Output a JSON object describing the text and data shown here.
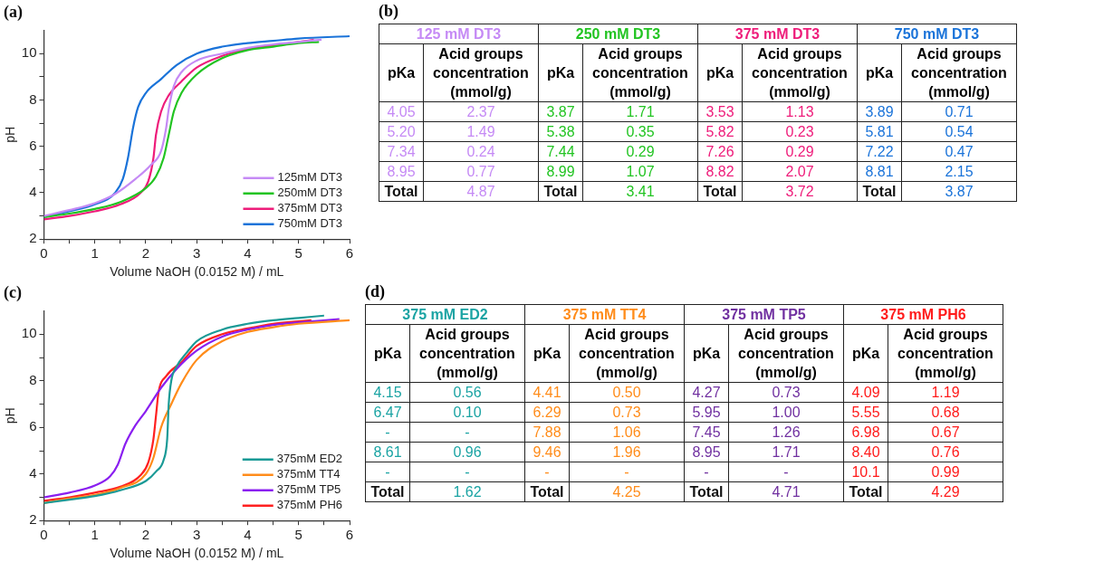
{
  "chart_data": [
    {
      "type": "line",
      "title": "(a)",
      "xlabel": "Volume NaOH (0.0152 M) / mL",
      "ylabel": "pH",
      "xlim": [
        0,
        6
      ],
      "ylim": [
        2,
        11
      ],
      "xticks": [
        0,
        {
          "value": 0.5,
          "label": null
        },
        1,
        {
          "value": 1.5,
          "label": null
        },
        2,
        {
          "value": 2.5,
          "label": null
        },
        3,
        {
          "value": 3.5,
          "label": null
        },
        4,
        {
          "value": 4.5,
          "label": null
        },
        5,
        {
          "value": 5.5,
          "label": null
        },
        6
      ],
      "yticks": [
        2,
        {
          "value": 3,
          "label": null
        },
        4,
        {
          "value": 5,
          "label": null
        },
        6,
        {
          "value": 7,
          "label": null
        },
        8,
        {
          "value": 9,
          "label": null
        },
        10
      ],
      "grid": false,
      "legend": "bottom right",
      "marker": "none",
      "series": [
        {
          "name": "125mM DT3",
          "color": "#c58af5",
          "x": [
            0,
            0.5,
            1,
            1.4,
            1.8,
            2.1,
            2.3,
            2.4,
            2.45,
            2.55,
            2.7,
            3,
            3.5,
            4,
            4.5,
            5,
            5.45
          ],
          "values": [
            3.0,
            3.25,
            3.55,
            3.95,
            4.6,
            5.2,
            5.8,
            6.8,
            7.6,
            8.6,
            9.2,
            9.7,
            10.0,
            10.25,
            10.4,
            10.5,
            10.6
          ]
        },
        {
          "name": "250mM DT3",
          "color": "#22c422",
          "x": [
            0,
            0.5,
            1,
            1.5,
            2,
            2.2,
            2.35,
            2.45,
            2.55,
            2.7,
            3,
            3.5,
            4,
            4.5,
            5,
            5.4
          ],
          "values": [
            2.95,
            3.1,
            3.3,
            3.6,
            4.2,
            4.7,
            5.5,
            6.5,
            7.5,
            8.3,
            9.1,
            9.8,
            10.15,
            10.3,
            10.45,
            10.5
          ]
        },
        {
          "name": "375mM DT3",
          "color": "#ee1c7a",
          "x": [
            0,
            0.5,
            1,
            1.5,
            1.9,
            2.05,
            2.15,
            2.2,
            2.3,
            2.45,
            2.7,
            3,
            3.5,
            4,
            4.5,
            5,
            5.3
          ],
          "values": [
            2.85,
            3.0,
            3.2,
            3.5,
            4.0,
            4.5,
            5.5,
            6.5,
            7.5,
            8.2,
            8.8,
            9.4,
            9.9,
            10.2,
            10.35,
            10.5,
            10.6
          ]
        },
        {
          "name": "750mM DT3",
          "color": "#1a73d9",
          "x": [
            0,
            0.5,
            1,
            1.4,
            1.55,
            1.65,
            1.75,
            1.85,
            2,
            2.3,
            2.6,
            3,
            3.5,
            4,
            4.5,
            5,
            6
          ],
          "values": [
            2.95,
            3.2,
            3.5,
            4.0,
            4.6,
            5.5,
            6.8,
            7.7,
            8.3,
            8.9,
            9.5,
            10.0,
            10.3,
            10.45,
            10.55,
            10.65,
            10.75
          ]
        }
      ]
    },
    {
      "type": "other",
      "title": "(b)",
      "annotations": [
        "125 mM DT3",
        "250 mM DT3",
        "375 mM DT3",
        "750 mM DT3",
        "pKa",
        "Acid groups concentration (mmol/g)",
        "pKa",
        "Acid groups concentration (mmol/g)",
        "pKa",
        "Acid groups concentration (mmol/g)",
        "pKa",
        "Acid groups concentration (mmol/g)",
        "4.05",
        "2.37",
        "3.87",
        "1.71",
        "3.53",
        "1.13",
        "3.89",
        "0.71",
        "5.20",
        "1.49",
        "5.38",
        "0.35",
        "5.82",
        "0.23",
        "5.81",
        "0.54",
        "7.34",
        "0.24",
        "7.44",
        "0.29",
        "7.26",
        "0.29",
        "7.22",
        "0.47",
        "8.95",
        "0.77",
        "8.99",
        "1.07",
        "8.82",
        "2.07",
        "8.81",
        "2.15",
        "Total",
        "4.87",
        "Total",
        "3.41",
        "Total",
        "3.72",
        "Total",
        "3.87"
      ]
    },
    {
      "type": "line",
      "title": "(c)",
      "xlabel": "Volume NaOH (0.0152 M) / mL",
      "ylabel": "pH",
      "xlim": [
        0,
        6
      ],
      "ylim": [
        2,
        11
      ],
      "xticks": [
        0,
        {
          "value": 0.5,
          "label": null
        },
        1,
        {
          "value": 1.5,
          "label": null
        },
        2,
        {
          "value": 2.5,
          "label": null
        },
        3,
        {
          "value": 3.5,
          "label": null
        },
        4,
        {
          "value": 4.5,
          "label": null
        },
        5,
        {
          "value": 5.5,
          "label": null
        },
        6
      ],
      "yticks": [
        2,
        {
          "value": 3,
          "label": null
        },
        4,
        {
          "value": 5,
          "label": null
        },
        6,
        {
          "value": 7,
          "label": null
        },
        8,
        {
          "value": 9,
          "label": null
        },
        10
      ],
      "grid": false,
      "legend": "bottom right",
      "marker": "none",
      "series": [
        {
          "name": "375mM ED2",
          "color": "#1a9a96",
          "x": [
            0,
            0.5,
            1,
            1.5,
            2,
            2.2,
            2.35,
            2.42,
            2.45,
            2.5,
            2.6,
            2.8,
            3,
            3.5,
            4,
            4.5,
            5,
            5.5
          ],
          "values": [
            2.75,
            2.9,
            3.05,
            3.3,
            3.7,
            4.1,
            4.6,
            5.5,
            7.0,
            8.0,
            8.6,
            9.2,
            9.7,
            10.2,
            10.45,
            10.6,
            10.7,
            10.8
          ]
        },
        {
          "name": "375mM TT4",
          "color": "#ff8c1a",
          "x": [
            0,
            0.5,
            1,
            1.5,
            2,
            2.15,
            2.3,
            2.5,
            2.7,
            3,
            3.5,
            4,
            4.5,
            5,
            6
          ],
          "values": [
            2.75,
            2.95,
            3.1,
            3.4,
            4.0,
            4.7,
            6.0,
            7.0,
            7.9,
            8.9,
            9.7,
            10.1,
            10.3,
            10.45,
            10.6
          ]
        },
        {
          "name": "375mM TP5",
          "color": "#8a1ff0",
          "x": [
            0,
            0.5,
            1,
            1.3,
            1.45,
            1.6,
            1.8,
            2,
            2.3,
            2.6,
            3,
            3.5,
            4,
            4.5,
            5,
            5.8
          ],
          "values": [
            3.0,
            3.2,
            3.5,
            3.9,
            4.4,
            5.3,
            6.1,
            6.7,
            7.7,
            8.5,
            9.3,
            9.9,
            10.2,
            10.4,
            10.5,
            10.65
          ]
        },
        {
          "name": "375mM PH6",
          "color": "#ff2020",
          "x": [
            0,
            0.5,
            1,
            1.5,
            1.9,
            2.05,
            2.15,
            2.2,
            2.25,
            2.4,
            2.7,
            3,
            3.5,
            4,
            4.5,
            5,
            5.25
          ],
          "values": [
            2.85,
            3.0,
            3.2,
            3.45,
            3.95,
            4.5,
            5.5,
            6.5,
            7.5,
            8.2,
            8.8,
            9.5,
            10.0,
            10.25,
            10.45,
            10.55,
            10.6
          ]
        }
      ]
    },
    {
      "type": "other",
      "title": "(d)",
      "annotations": [
        "375 mM ED2",
        "375 mM TT4",
        "375 mM TP5",
        "375 mM PH6",
        "pKa",
        "Acid groups concentration (mmol/g)",
        "pKa",
        "Acid groups concentration (mmol/g)",
        "pKa",
        "Acid groups concentration (mmol/g)",
        "pKa",
        "Acid groups concentration (mmol/g)",
        "4.15",
        "0.56",
        "4.41",
        "0.50",
        "4.27",
        "0.73",
        "4.09",
        "1.19",
        "6.47",
        "0.10",
        "6.29",
        "0.73",
        "5.95",
        "1.00",
        "5.55",
        "0.68",
        "-",
        "-",
        "7.88",
        "1.06",
        "7.45",
        "1.26",
        "6.98",
        "0.67",
        "8.61",
        "0.96",
        "9.46",
        "1.96",
        "8.95",
        "1.71",
        "8.40",
        "0.76",
        "-",
        "-",
        "-",
        "-",
        "-",
        "-",
        "10.1",
        "0.99",
        "Total",
        "1.62",
        "Total",
        "4.25",
        "Total",
        "4.71",
        "Total",
        "4.29"
      ]
    }
  ]
}
